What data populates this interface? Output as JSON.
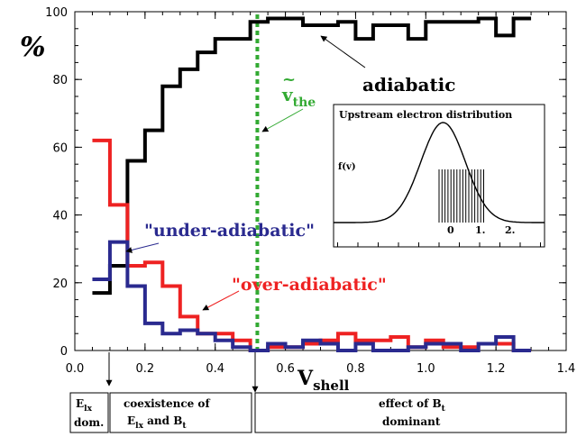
{
  "chart_data": [
    {
      "type": "line",
      "subtype": "step",
      "title": "",
      "ylabel": "%",
      "xlabel": "V",
      "xlabel_sub": "shell",
      "xlim": [
        0.0,
        1.4
      ],
      "ylim": [
        0,
        100
      ],
      "xticks": [
        "0.0",
        "0.2",
        "0.4",
        "0.6",
        "0.8",
        "1.0",
        "1.2",
        "1.4"
      ],
      "yticks": [
        "0",
        "20",
        "40",
        "60",
        "80",
        "100"
      ],
      "x": [
        0.05,
        0.1,
        0.15,
        0.2,
        0.25,
        0.3,
        0.35,
        0.4,
        0.45,
        0.5,
        0.55,
        0.6,
        0.65,
        0.7,
        0.75,
        0.8,
        0.85,
        0.9,
        0.95,
        1.0,
        1.05,
        1.1,
        1.15,
        1.2,
        1.25
      ],
      "series": [
        {
          "name": "adiabatic",
          "color": "#000000",
          "values": [
            17,
            25,
            56,
            65,
            78,
            83,
            88,
            92,
            92,
            97,
            98,
            98,
            96,
            96,
            97,
            92,
            96,
            96,
            92,
            97,
            97,
            97,
            98,
            93,
            98
          ]
        },
        {
          "name": "over-adiabatic",
          "color": "#ee2222",
          "values": [
            62,
            43,
            25,
            26,
            19,
            10,
            5,
            5,
            3,
            0,
            1,
            1,
            2,
            3,
            5,
            3,
            3,
            4,
            1,
            3,
            1,
            1,
            2,
            2,
            0
          ]
        },
        {
          "name": "under-adiabatic",
          "color": "#2a2a8f",
          "values": [
            21,
            32,
            19,
            8,
            5,
            6,
            5,
            3,
            1,
            0,
            2,
            1,
            3,
            2,
            0,
            2,
            0,
            0,
            1,
            2,
            2,
            0,
            2,
            4,
            0
          ]
        }
      ],
      "annotations": [
        {
          "label": "adiabatic",
          "color": "#000000"
        },
        {
          "label": "\"under-adiabatic\"",
          "color": "#2a2a8f"
        },
        {
          "label": "\"over-adiabatic\"",
          "color": "#ee2222"
        },
        {
          "label": "v",
          "sub": "the",
          "accent": "~",
          "color": "#33aa33",
          "x_marker": 0.52
        }
      ]
    },
    {
      "type": "line",
      "title": "Upstream electron distribution",
      "ylabel": "f(v)",
      "xlabel": "",
      "xticks": [
        "0",
        "1.",
        "2."
      ],
      "xlim": [
        -2.6,
        2.6
      ],
      "curve": "gaussian",
      "shell_lines": {
        "from": 0.0,
        "to": 1.1,
        "count": 16
      }
    }
  ],
  "regions": [
    {
      "line1": "E",
      "line1_sub": "lx",
      "line2": "dom."
    },
    {
      "line1": "coexistence of",
      "line2_a": "E",
      "line2_a_sub": "lx",
      "line2_b": " and B",
      "line2_b_sub": "t"
    },
    {
      "line1": "effect of B",
      "line1_sub": "t",
      "line2": "dominant"
    }
  ]
}
